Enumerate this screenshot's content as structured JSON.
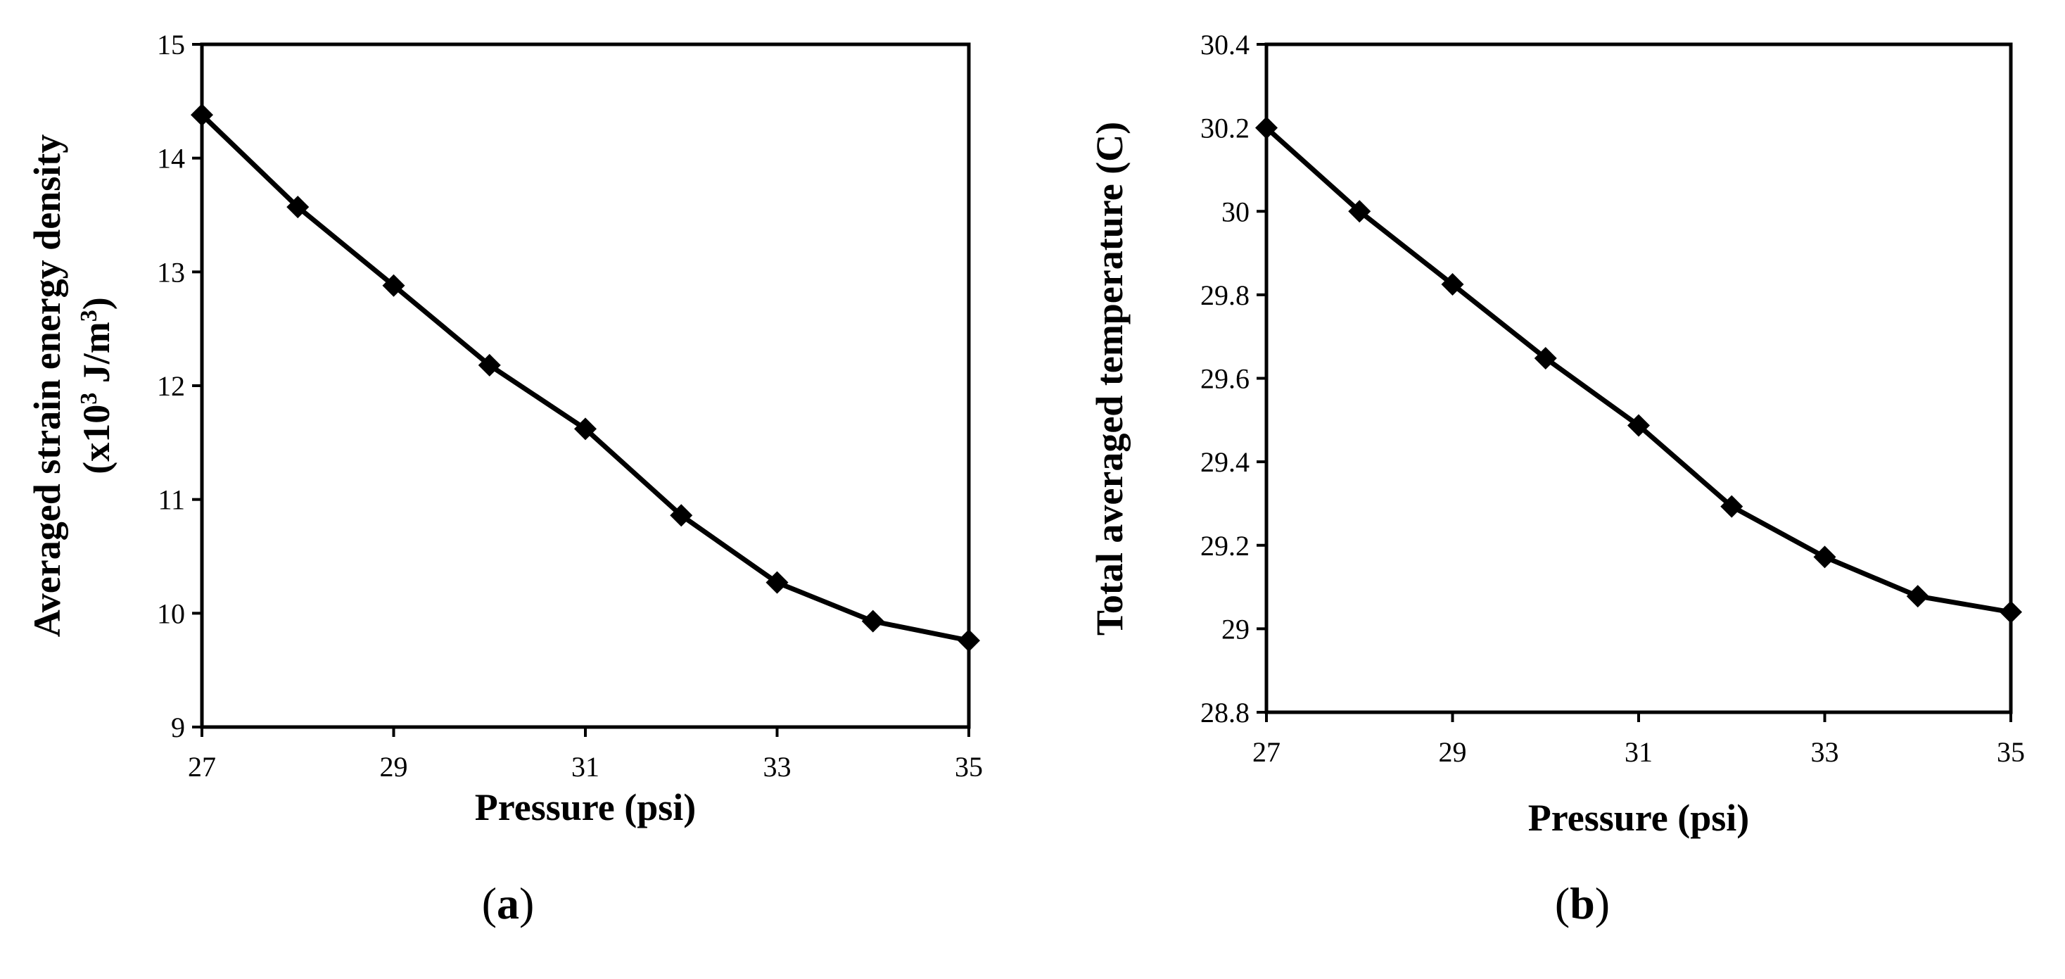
{
  "chart_data": [
    {
      "type": "line",
      "panel_label": {
        "open": "(",
        "letter": "a",
        "close": ")"
      },
      "xlabel": "Pressure (psi)",
      "ylabel": "Averaged strain energy density",
      "ylabel2_prefix": "(x10",
      "ylabel2_sup": "3",
      "ylabel2_unit": " J/m",
      "ylabel2_sup2": "3",
      "ylabel2_close": ")",
      "xlim": [
        27,
        35
      ],
      "ylim": [
        9,
        15
      ],
      "xticks": [
        "27",
        "29",
        "31",
        "33",
        "35"
      ],
      "yticks": [
        "9",
        "10",
        "11",
        "12",
        "13",
        "14",
        "15"
      ],
      "series": [
        {
          "name": "strain energy density",
          "marker": "diamond",
          "color": "#000000",
          "x": [
            27,
            28,
            29,
            30,
            31,
            32,
            33,
            34,
            35
          ],
          "y": [
            14.38,
            13.57,
            12.88,
            12.18,
            11.62,
            10.86,
            10.27,
            9.93,
            9.76
          ]
        }
      ]
    },
    {
      "type": "line",
      "panel_label": {
        "open": "(",
        "letter": "b",
        "close": ")"
      },
      "xlabel": "Pressure (psi)",
      "ylabel": "Total averaged temperature (C)",
      "xlim": [
        27,
        35
      ],
      "ylim": [
        28.8,
        30.4
      ],
      "xticks": [
        "27",
        "29",
        "31",
        "33",
        "35"
      ],
      "yticks": [
        "28.8",
        "29",
        "29.2",
        "29.4",
        "29.6",
        "29.8",
        "30",
        "30.2",
        "30.4"
      ],
      "series": [
        {
          "name": "temperature",
          "marker": "diamond",
          "color": "#000000",
          "x": [
            27,
            28,
            29,
            30,
            31,
            32,
            33,
            34,
            35
          ],
          "y": [
            30.2,
            30.0,
            29.825,
            29.648,
            29.487,
            29.293,
            29.172,
            29.078,
            29.04
          ]
        }
      ]
    }
  ]
}
